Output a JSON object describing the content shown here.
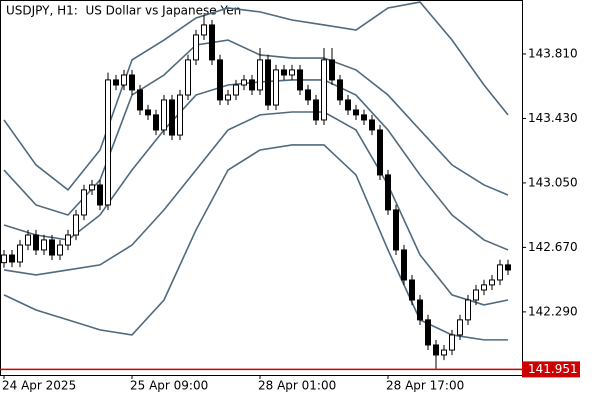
{
  "chart_data": {
    "type": "candlestick",
    "title": "USDJPY, H1:  US Dollar vs Japanese Yen",
    "categories": [
      "24 Apr 2025",
      null,
      null,
      null,
      null,
      null,
      null,
      null,
      null,
      null,
      null,
      null,
      null,
      null,
      null,
      null,
      "25 Apr 09:00",
      null,
      null,
      null,
      null,
      null,
      null,
      null,
      null,
      null,
      null,
      null,
      null,
      null,
      null,
      null,
      "28 Apr 01:00",
      null,
      null,
      null,
      null,
      null,
      null,
      null,
      null,
      null,
      null,
      null,
      null,
      null,
      null,
      null,
      "28 Apr 17:00",
      null,
      null,
      null,
      null,
      null,
      null,
      null,
      null,
      null,
      null,
      null,
      null,
      null,
      null,
      null
    ],
    "open": [
      142.58,
      142.625,
      142.584,
      142.684,
      142.743,
      142.655,
      142.714,
      142.625,
      142.684,
      142.743,
      142.861,
      143.009,
      143.038,
      142.92,
      143.657,
      143.627,
      143.686,
      143.598,
      143.48,
      143.451,
      143.362,
      143.539,
      143.332,
      143.568,
      143.775,
      143.922,
      143.981,
      143.775,
      143.539,
      143.568,
      143.627,
      143.657,
      143.598,
      143.775,
      143.509,
      143.716,
      143.686,
      143.716,
      143.598,
      143.539,
      143.421,
      143.775,
      143.657,
      143.539,
      143.48,
      143.451,
      143.421,
      143.362,
      143.097,
      142.891,
      142.655,
      142.478,
      142.36,
      142.243,
      142.095,
      142.036,
      142.065,
      142.154,
      142.243,
      142.36,
      142.419,
      142.449,
      142.478,
      142.567
    ],
    "high": [
      142.655,
      142.655,
      142.714,
      142.773,
      142.773,
      142.744,
      142.744,
      142.714,
      142.773,
      142.891,
      143.039,
      143.068,
      143.068,
      143.7,
      143.687,
      143.716,
      143.716,
      143.628,
      143.51,
      143.481,
      143.569,
      143.569,
      143.598,
      143.805,
      143.952,
      144.04,
      144.011,
      143.805,
      143.598,
      143.657,
      143.687,
      143.687,
      143.845,
      143.805,
      143.746,
      143.746,
      143.746,
      143.746,
      143.628,
      143.569,
      143.845,
      143.845,
      143.687,
      143.569,
      143.51,
      143.481,
      143.451,
      143.392,
      143.127,
      142.921,
      142.685,
      142.508,
      142.39,
      142.273,
      142.125,
      142.095,
      142.184,
      142.273,
      142.39,
      142.449,
      142.479,
      142.508,
      142.597,
      142.597
    ],
    "low": [
      142.55,
      142.554,
      142.554,
      142.654,
      142.625,
      142.625,
      142.595,
      142.595,
      142.654,
      142.713,
      142.831,
      142.979,
      142.89,
      142.89,
      143.597,
      143.597,
      143.568,
      143.45,
      143.421,
      143.332,
      143.332,
      143.302,
      143.302,
      143.538,
      143.745,
      143.892,
      143.745,
      143.509,
      143.509,
      143.538,
      143.597,
      143.568,
      143.568,
      143.479,
      143.479,
      143.656,
      143.656,
      143.568,
      143.509,
      143.391,
      143.391,
      143.627,
      143.509,
      143.45,
      143.421,
      143.391,
      143.332,
      143.067,
      142.861,
      142.625,
      142.448,
      142.33,
      142.213,
      142.065,
      141.955,
      142.006,
      142.035,
      142.124,
      142.213,
      142.33,
      142.389,
      142.419,
      142.448,
      142.507
    ],
    "close": [
      142.625,
      142.584,
      142.684,
      142.743,
      142.655,
      142.714,
      142.625,
      142.684,
      142.743,
      142.861,
      143.009,
      143.038,
      142.92,
      143.657,
      143.627,
      143.686,
      143.598,
      143.48,
      143.451,
      143.362,
      143.539,
      143.332,
      143.568,
      143.775,
      143.922,
      143.981,
      143.775,
      143.539,
      143.568,
      143.627,
      143.657,
      143.598,
      143.775,
      143.509,
      143.716,
      143.686,
      143.716,
      143.598,
      143.539,
      143.421,
      143.775,
      143.657,
      143.539,
      143.48,
      143.451,
      143.421,
      143.362,
      143.097,
      142.891,
      142.655,
      142.478,
      142.36,
      142.243,
      142.095,
      142.036,
      142.065,
      142.154,
      142.243,
      142.36,
      142.419,
      142.449,
      142.478,
      142.567,
      142.537
    ],
    "line_color": "#4f6a7e",
    "lines": [
      {
        "x": [
          0,
          4,
          8,
          12,
          16,
          20,
          24,
          28,
          32,
          36,
          40,
          44,
          48,
          52,
          56,
          60,
          63
        ],
        "values": [
          143.421,
          143.156,
          143.009,
          143.244,
          143.775,
          143.892,
          144.022,
          144.081,
          144.058,
          144.01,
          143.981,
          143.951,
          144.081,
          144.116,
          143.892,
          143.627,
          143.451
        ]
      },
      {
        "x": [
          0,
          4,
          8,
          12,
          16,
          20,
          24,
          28,
          32,
          36,
          40,
          44,
          48,
          52,
          56,
          60,
          63
        ],
        "values": [
          143.126,
          142.92,
          142.861,
          143.067,
          143.568,
          143.686,
          143.863,
          143.892,
          143.804,
          143.786,
          143.786,
          143.716,
          143.568,
          143.362,
          143.156,
          143.038,
          142.979
        ]
      },
      {
        "x": [
          0,
          4,
          8,
          12,
          16,
          20,
          24,
          28,
          32,
          36,
          40,
          44,
          48,
          52,
          56,
          60,
          63
        ],
        "values": [
          142.802,
          142.743,
          142.714,
          142.861,
          143.126,
          143.362,
          143.568,
          143.627,
          143.645,
          143.657,
          143.657,
          143.568,
          143.362,
          143.097,
          142.861,
          142.714,
          142.655
        ]
      },
      {
        "x": [
          0,
          4,
          8,
          12,
          16,
          20,
          24,
          28,
          32,
          36,
          40,
          44,
          48,
          52,
          56,
          60,
          63
        ],
        "values": [
          142.537,
          142.508,
          142.537,
          142.567,
          142.684,
          142.891,
          143.126,
          143.362,
          143.451,
          143.468,
          143.468,
          143.362,
          143.038,
          142.626,
          142.39,
          142.331,
          142.36
        ]
      },
      {
        "x": [
          0,
          4,
          8,
          12,
          16,
          20,
          24,
          28,
          32,
          36,
          40,
          44,
          48,
          52,
          56,
          60,
          63
        ],
        "values": [
          142.39,
          142.301,
          142.243,
          142.184,
          142.154,
          142.36,
          142.773,
          143.126,
          143.244,
          143.274,
          143.274,
          143.097,
          142.655,
          142.243,
          142.154,
          142.125,
          142.125
        ]
      }
    ],
    "level": 141.951,
    "level_color": "#cc0000",
    "up_color": "#ffffff",
    "down_color": "#000000",
    "ylim": [
      141.918,
      144.128
    ],
    "yticks": [
      {
        "value": 142.29,
        "label": "142.290"
      },
      {
        "value": 142.67,
        "label": "142.670"
      },
      {
        "value": 143.05,
        "label": "143.050"
      },
      {
        "value": 143.43,
        "label": "143.430"
      },
      {
        "value": 143.81,
        "label": "143.810"
      }
    ]
  }
}
